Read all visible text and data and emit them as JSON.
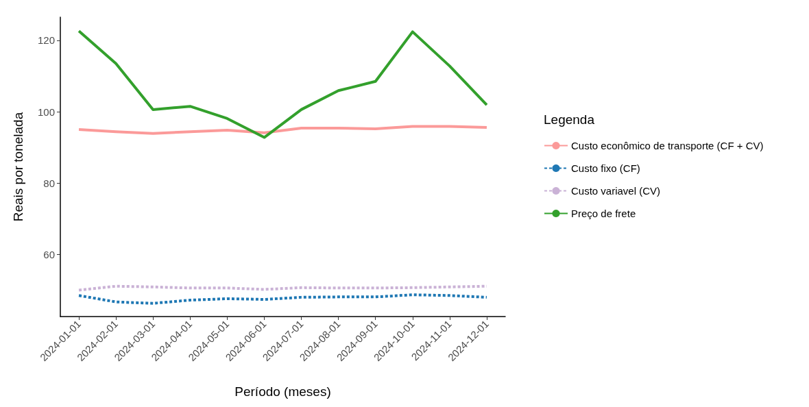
{
  "chart_data": {
    "type": "line",
    "xlabel": "Período (meses)",
    "ylabel": "Reais por tonelada",
    "legend_title": "Legenda",
    "legend": "right",
    "grid": false,
    "marker": "none",
    "categories": [
      "2024-01-01",
      "2024-02-01",
      "2024-03-01",
      "2024-04-01",
      "2024-05-01",
      "2024-06-01",
      "2024-07-01",
      "2024-08-01",
      "2024-09-01",
      "2024-10-01",
      "2024-11-01",
      "2024-12-01"
    ],
    "ylim": [
      42.6,
      126.5
    ],
    "yticks": [
      60,
      80,
      100,
      120
    ],
    "series": [
      {
        "name": "Custo econômico de transporte (CF + CV)",
        "color": "#fb9a99",
        "line_style": "solid",
        "values": [
          95.0,
          94.4,
          93.9,
          94.4,
          94.8,
          94.1,
          95.4,
          95.4,
          95.2,
          95.9,
          95.9,
          95.6
        ]
      },
      {
        "name": "Custo fixo (CF)",
        "color": "#1f78b4",
        "line_style": "dashed",
        "values": [
          48.5,
          46.7,
          46.3,
          47.2,
          47.6,
          47.4,
          48.0,
          48.1,
          48.1,
          48.7,
          48.5,
          48.0
        ]
      },
      {
        "name": "Custo variavel (CV)",
        "color": "#cab2d6",
        "line_style": "dashed",
        "values": [
          50.0,
          51.1,
          50.9,
          50.6,
          50.6,
          50.2,
          50.7,
          50.6,
          50.6,
          50.7,
          50.9,
          51.1
        ]
      },
      {
        "name": "Preço de frete",
        "color": "#33a02c",
        "line_style": "solid",
        "values": [
          122.6,
          113.5,
          100.6,
          101.5,
          98.1,
          92.8,
          100.6,
          105.9,
          108.5,
          122.4,
          112.8,
          101.9
        ]
      }
    ]
  }
}
